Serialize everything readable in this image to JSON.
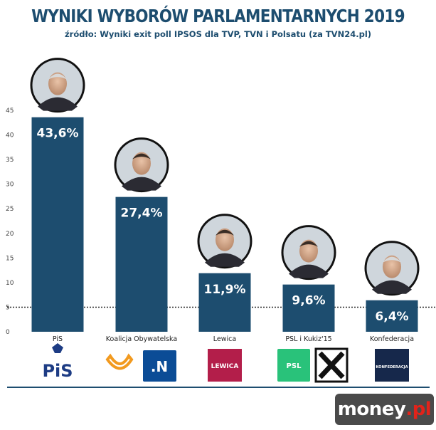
{
  "title": "WYNIKI WYBORÓW PARLAMENTARNYCH 2019",
  "subtitle": "źródło: Wyniki exit poll IPSOS dla TVP, TVN i Polsatu (za TVN24.pl)",
  "brand": {
    "name": "money",
    "suffix": ".pl"
  },
  "colors": {
    "bar": "#1d4d6f",
    "title": "#1d4d6f",
    "threshold": "#222222"
  },
  "chart_data": {
    "type": "bar",
    "title": "WYNIKI WYBORÓW PARLAMENTARNYCH 2019",
    "subtitle": "źródło: Wyniki exit poll IPSOS dla TVP, TVN i Polsatu (za TVN24.pl)",
    "categories": [
      "PiS",
      "Koalicja Obywatelska",
      "Lewica",
      "PSL i Kukiz'15",
      "Konfederacja"
    ],
    "values": [
      43.6,
      27.4,
      11.9,
      9.6,
      6.4
    ],
    "value_labels": [
      "43,6%",
      "27,4%",
      "11,9%",
      "9,6%",
      "6,4%"
    ],
    "yticks": [
      "0",
      "5",
      "10",
      "15",
      "20",
      "25",
      "30",
      "35",
      "40",
      "45"
    ],
    "ylim": [
      0,
      45
    ],
    "threshold_line": 5,
    "grid": false,
    "xlabel": "",
    "ylabel": "",
    "logos": [
      [
        "PiS"
      ],
      [
        "",
        ".N"
      ],
      [
        "LEWICA"
      ],
      [
        "PSL",
        ""
      ],
      [
        "KONFEDERACJA"
      ]
    ]
  }
}
